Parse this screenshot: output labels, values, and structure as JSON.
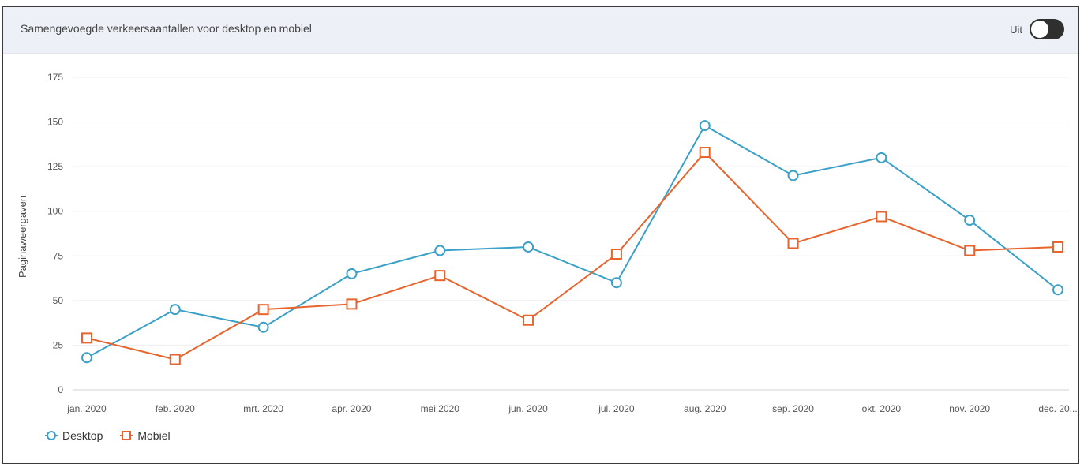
{
  "header": {
    "title": "Samengevoegde verkeersaantallen voor desktop en mobiel",
    "toggle_label": "Uit"
  },
  "chart_data": {
    "type": "line",
    "title": "",
    "xlabel": "",
    "ylabel": "Paginaweergaven",
    "ylim": [
      0,
      175
    ],
    "yticks": [
      0,
      25,
      50,
      75,
      100,
      125,
      150,
      175
    ],
    "grid": true,
    "legend_position": "bottom-left",
    "categories": [
      "jan. 2020",
      "feb. 2020",
      "mrt. 2020",
      "apr. 2020",
      "mei 2020",
      "jun. 2020",
      "jul. 2020",
      "aug. 2020",
      "sep. 2020",
      "okt. 2020",
      "nov. 2020",
      "dec. 20..."
    ],
    "series": [
      {
        "name": "Desktop",
        "color": "#3aa0c8",
        "marker": "circle",
        "values": [
          18,
          45,
          35,
          65,
          78,
          80,
          60,
          148,
          120,
          130,
          95,
          56
        ]
      },
      {
        "name": "Mobiel",
        "color": "#e8642c",
        "marker": "square",
        "values": [
          29,
          17,
          45,
          48,
          64,
          39,
          76,
          133,
          82,
          97,
          78,
          80
        ]
      }
    ]
  }
}
